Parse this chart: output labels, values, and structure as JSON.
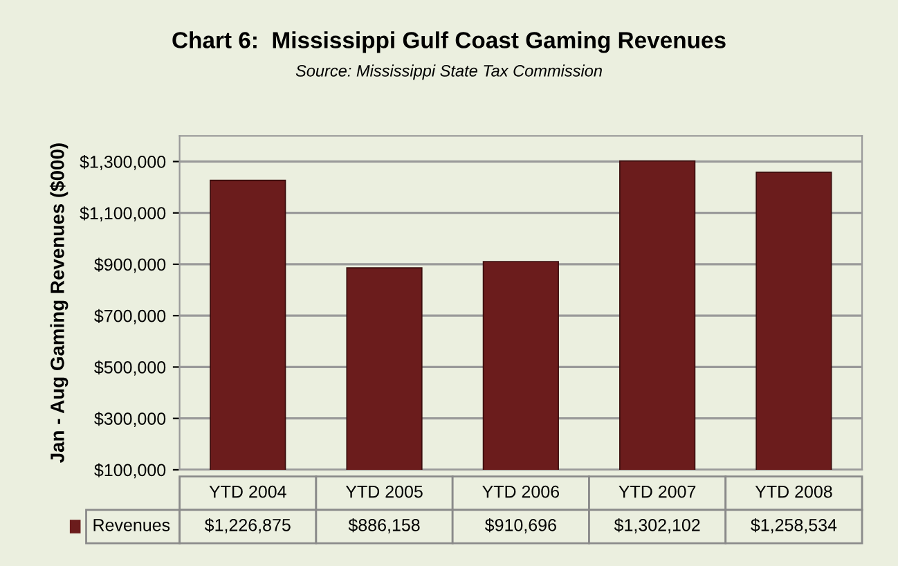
{
  "chart_data": {
    "type": "bar",
    "title": "Chart 6:  Mississippi Gulf Coast Gaming Revenues",
    "subtitle": "Source: Mississippi State Tax Commission",
    "ylabel": "Jan - Aug Gaming Revenues ($000)",
    "categories": [
      "YTD 2004",
      "YTD 2005",
      "YTD 2006",
      "YTD 2007",
      "YTD 2008"
    ],
    "series": [
      {
        "name": "Revenues",
        "color": "#6b1c1c",
        "values": [
          1226875,
          886158,
          910696,
          1302102,
          1258534
        ],
        "value_labels": [
          "$1,226,875",
          "$886,158",
          "$910,696",
          "$1,302,102",
          "$1,258,534"
        ]
      }
    ],
    "ylim": [
      100000,
      1400000
    ],
    "yticks": [
      {
        "value": 100000,
        "label": "$100,000"
      },
      {
        "value": 300000,
        "label": "$300,000"
      },
      {
        "value": 500000,
        "label": "$500,000"
      },
      {
        "value": 700000,
        "label": "$700,000"
      },
      {
        "value": 900000,
        "label": "$900,000"
      },
      {
        "value": 1100000,
        "label": "$1,100,000"
      },
      {
        "value": 1300000,
        "label": "$1,300,000"
      }
    ],
    "grid": "y"
  }
}
